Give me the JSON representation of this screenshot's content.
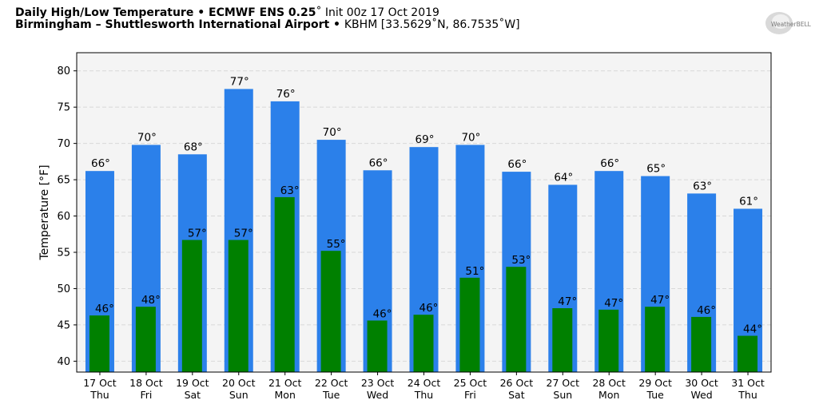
{
  "header": {
    "title_bold": "Daily High/Low Temperature • ECMWF ENS 0.25",
    "title_deg": "˚",
    "title_rest": " Init 00z 17 Oct 2019",
    "location_bold": "Birmingham – Shuttlesworth International Airport",
    "location_sep": " • ",
    "location_rest": "KBHM [33.5629˚N, 86.7535˚W]"
  },
  "logo": {
    "text": "WeatherBELL"
  },
  "colors": {
    "high": "#2b80ea",
    "low": "#008000",
    "plot_bg": "#f4f4f4"
  },
  "chart_data": {
    "type": "bar",
    "ylabel": "Temperature [°F]",
    "ylim": [
      38.5,
      82.5
    ],
    "yticks": [
      40,
      45,
      50,
      55,
      60,
      65,
      70,
      75,
      80
    ],
    "grid": true,
    "categories": [
      "17 Oct",
      "18 Oct",
      "19 Oct",
      "20 Oct",
      "21 Oct",
      "22 Oct",
      "23 Oct",
      "24 Oct",
      "25 Oct",
      "26 Oct",
      "27 Oct",
      "28 Oct",
      "29 Oct",
      "30 Oct",
      "31 Oct"
    ],
    "weekdays": [
      "Thu",
      "Fri",
      "Sat",
      "Sun",
      "Mon",
      "Tue",
      "Wed",
      "Thu",
      "Fri",
      "Sat",
      "Sun",
      "Mon",
      "Tue",
      "Wed",
      "Thu"
    ],
    "series": [
      {
        "key": "high",
        "values": [
          66.2,
          69.8,
          68.5,
          77.5,
          75.8,
          70.5,
          66.3,
          69.5,
          69.8,
          66.1,
          64.3,
          66.2,
          65.5,
          63.1,
          61.0
        ],
        "labels": [
          "66°",
          "70°",
          "68°",
          "77°",
          "76°",
          "70°",
          "66°",
          "69°",
          "70°",
          "66°",
          "64°",
          "66°",
          "65°",
          "63°",
          "61°"
        ]
      },
      {
        "key": "low",
        "values": [
          46.3,
          47.5,
          56.7,
          56.7,
          62.6,
          55.2,
          45.6,
          46.4,
          51.5,
          53.0,
          47.3,
          47.1,
          47.5,
          46.1,
          43.5
        ],
        "labels": [
          "46°",
          "48°",
          "57°",
          "57°",
          "63°",
          "55°",
          "46°",
          "46°",
          "51°",
          "53°",
          "47°",
          "47°",
          "47°",
          "46°",
          "44°"
        ]
      }
    ]
  }
}
